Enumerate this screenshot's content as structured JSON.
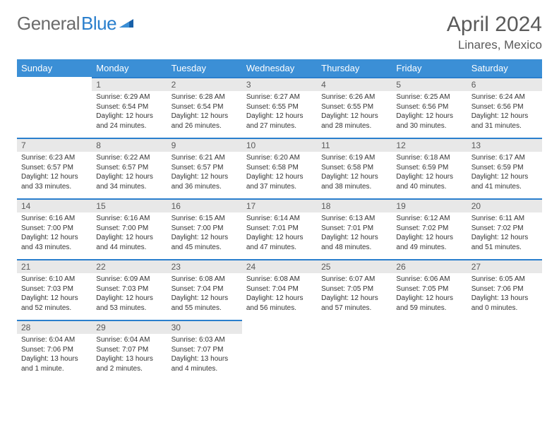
{
  "brand": {
    "part1": "General",
    "part2": "Blue"
  },
  "title": "April 2024",
  "location": "Linares, Mexico",
  "colors": {
    "header_bg": "#3b8fd6",
    "accent": "#2a7fcd",
    "daynum_bg": "#e8e8e8",
    "text_muted": "#5a5a5a",
    "text_body": "#333333",
    "background": "#ffffff"
  },
  "typography": {
    "title_fontsize": 30,
    "location_fontsize": 17,
    "dayheader_fontsize": 13,
    "daynum_fontsize": 12,
    "body_fontsize": 10
  },
  "day_headers": [
    "Sunday",
    "Monday",
    "Tuesday",
    "Wednesday",
    "Thursday",
    "Friday",
    "Saturday"
  ],
  "weeks": [
    [
      {
        "n": "",
        "sunrise": "",
        "sunset": "",
        "daylight": "",
        "empty": true
      },
      {
        "n": "1",
        "sunrise": "Sunrise: 6:29 AM",
        "sunset": "Sunset: 6:54 PM",
        "daylight": "Daylight: 12 hours and 24 minutes."
      },
      {
        "n": "2",
        "sunrise": "Sunrise: 6:28 AM",
        "sunset": "Sunset: 6:54 PM",
        "daylight": "Daylight: 12 hours and 26 minutes."
      },
      {
        "n": "3",
        "sunrise": "Sunrise: 6:27 AM",
        "sunset": "Sunset: 6:55 PM",
        "daylight": "Daylight: 12 hours and 27 minutes."
      },
      {
        "n": "4",
        "sunrise": "Sunrise: 6:26 AM",
        "sunset": "Sunset: 6:55 PM",
        "daylight": "Daylight: 12 hours and 28 minutes."
      },
      {
        "n": "5",
        "sunrise": "Sunrise: 6:25 AM",
        "sunset": "Sunset: 6:56 PM",
        "daylight": "Daylight: 12 hours and 30 minutes."
      },
      {
        "n": "6",
        "sunrise": "Sunrise: 6:24 AM",
        "sunset": "Sunset: 6:56 PM",
        "daylight": "Daylight: 12 hours and 31 minutes."
      }
    ],
    [
      {
        "n": "7",
        "sunrise": "Sunrise: 6:23 AM",
        "sunset": "Sunset: 6:57 PM",
        "daylight": "Daylight: 12 hours and 33 minutes."
      },
      {
        "n": "8",
        "sunrise": "Sunrise: 6:22 AM",
        "sunset": "Sunset: 6:57 PM",
        "daylight": "Daylight: 12 hours and 34 minutes."
      },
      {
        "n": "9",
        "sunrise": "Sunrise: 6:21 AM",
        "sunset": "Sunset: 6:57 PM",
        "daylight": "Daylight: 12 hours and 36 minutes."
      },
      {
        "n": "10",
        "sunrise": "Sunrise: 6:20 AM",
        "sunset": "Sunset: 6:58 PM",
        "daylight": "Daylight: 12 hours and 37 minutes."
      },
      {
        "n": "11",
        "sunrise": "Sunrise: 6:19 AM",
        "sunset": "Sunset: 6:58 PM",
        "daylight": "Daylight: 12 hours and 38 minutes."
      },
      {
        "n": "12",
        "sunrise": "Sunrise: 6:18 AM",
        "sunset": "Sunset: 6:59 PM",
        "daylight": "Daylight: 12 hours and 40 minutes."
      },
      {
        "n": "13",
        "sunrise": "Sunrise: 6:17 AM",
        "sunset": "Sunset: 6:59 PM",
        "daylight": "Daylight: 12 hours and 41 minutes."
      }
    ],
    [
      {
        "n": "14",
        "sunrise": "Sunrise: 6:16 AM",
        "sunset": "Sunset: 7:00 PM",
        "daylight": "Daylight: 12 hours and 43 minutes."
      },
      {
        "n": "15",
        "sunrise": "Sunrise: 6:16 AM",
        "sunset": "Sunset: 7:00 PM",
        "daylight": "Daylight: 12 hours and 44 minutes."
      },
      {
        "n": "16",
        "sunrise": "Sunrise: 6:15 AM",
        "sunset": "Sunset: 7:00 PM",
        "daylight": "Daylight: 12 hours and 45 minutes."
      },
      {
        "n": "17",
        "sunrise": "Sunrise: 6:14 AM",
        "sunset": "Sunset: 7:01 PM",
        "daylight": "Daylight: 12 hours and 47 minutes."
      },
      {
        "n": "18",
        "sunrise": "Sunrise: 6:13 AM",
        "sunset": "Sunset: 7:01 PM",
        "daylight": "Daylight: 12 hours and 48 minutes."
      },
      {
        "n": "19",
        "sunrise": "Sunrise: 6:12 AM",
        "sunset": "Sunset: 7:02 PM",
        "daylight": "Daylight: 12 hours and 49 minutes."
      },
      {
        "n": "20",
        "sunrise": "Sunrise: 6:11 AM",
        "sunset": "Sunset: 7:02 PM",
        "daylight": "Daylight: 12 hours and 51 minutes."
      }
    ],
    [
      {
        "n": "21",
        "sunrise": "Sunrise: 6:10 AM",
        "sunset": "Sunset: 7:03 PM",
        "daylight": "Daylight: 12 hours and 52 minutes."
      },
      {
        "n": "22",
        "sunrise": "Sunrise: 6:09 AM",
        "sunset": "Sunset: 7:03 PM",
        "daylight": "Daylight: 12 hours and 53 minutes."
      },
      {
        "n": "23",
        "sunrise": "Sunrise: 6:08 AM",
        "sunset": "Sunset: 7:04 PM",
        "daylight": "Daylight: 12 hours and 55 minutes."
      },
      {
        "n": "24",
        "sunrise": "Sunrise: 6:08 AM",
        "sunset": "Sunset: 7:04 PM",
        "daylight": "Daylight: 12 hours and 56 minutes."
      },
      {
        "n": "25",
        "sunrise": "Sunrise: 6:07 AM",
        "sunset": "Sunset: 7:05 PM",
        "daylight": "Daylight: 12 hours and 57 minutes."
      },
      {
        "n": "26",
        "sunrise": "Sunrise: 6:06 AM",
        "sunset": "Sunset: 7:05 PM",
        "daylight": "Daylight: 12 hours and 59 minutes."
      },
      {
        "n": "27",
        "sunrise": "Sunrise: 6:05 AM",
        "sunset": "Sunset: 7:06 PM",
        "daylight": "Daylight: 13 hours and 0 minutes."
      }
    ],
    [
      {
        "n": "28",
        "sunrise": "Sunrise: 6:04 AM",
        "sunset": "Sunset: 7:06 PM",
        "daylight": "Daylight: 13 hours and 1 minute."
      },
      {
        "n": "29",
        "sunrise": "Sunrise: 6:04 AM",
        "sunset": "Sunset: 7:07 PM",
        "daylight": "Daylight: 13 hours and 2 minutes."
      },
      {
        "n": "30",
        "sunrise": "Sunrise: 6:03 AM",
        "sunset": "Sunset: 7:07 PM",
        "daylight": "Daylight: 13 hours and 4 minutes."
      },
      {
        "n": "",
        "sunrise": "",
        "sunset": "",
        "daylight": "",
        "empty": true
      },
      {
        "n": "",
        "sunrise": "",
        "sunset": "",
        "daylight": "",
        "empty": true
      },
      {
        "n": "",
        "sunrise": "",
        "sunset": "",
        "daylight": "",
        "empty": true
      },
      {
        "n": "",
        "sunrise": "",
        "sunset": "",
        "daylight": "",
        "empty": true
      }
    ]
  ]
}
